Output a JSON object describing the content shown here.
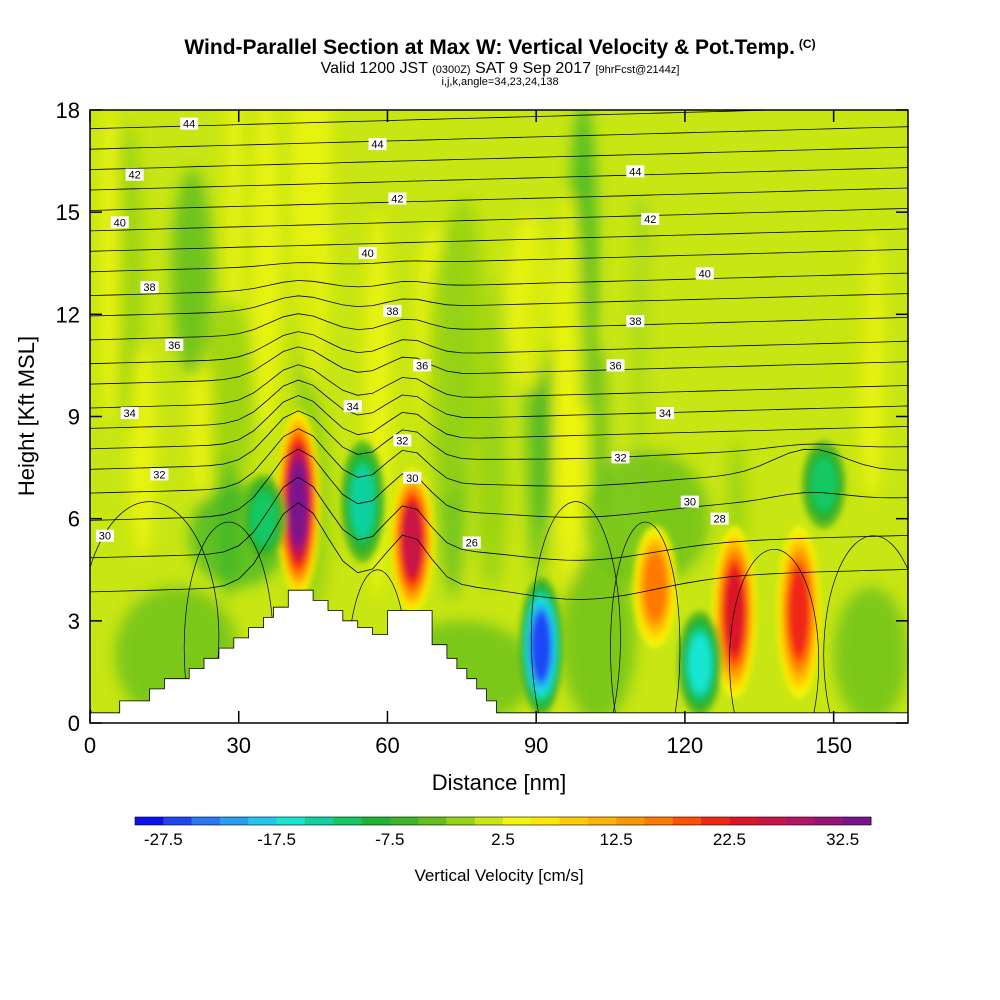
{
  "title": {
    "main": "Wind-Parallel Section at Max W: Vertical Velocity & Pot.Temp.",
    "copyright": "(C)",
    "valid_prefix": "Valid 1200 JST",
    "valid_utc": "(0300Z)",
    "valid_date": "SAT 9 Sep 2017",
    "forecast": "[9hrFcst@2144z]",
    "indices": "i,j,k,angle=34,23,24,138"
  },
  "chart_data": {
    "type": "heatmap",
    "xlabel": "Distance [nm]",
    "ylabel": "Height [Kft MSL]",
    "xlim": [
      0,
      165
    ],
    "ylim": [
      0,
      18
    ],
    "x_ticks": [
      "0",
      "30",
      "60",
      "90",
      "120",
      "150"
    ],
    "x_tick_values": [
      0,
      30,
      60,
      90,
      120,
      150
    ],
    "y_ticks": [
      "0",
      "3",
      "6",
      "9",
      "12",
      "15",
      "18"
    ],
    "y_tick_values": [
      0,
      3,
      6,
      9,
      12,
      15,
      18
    ],
    "colorbar": {
      "label": "Vertical Velocity [cm/s]",
      "min": -30,
      "max": 35,
      "step": 2.5,
      "tick_labels": [
        "-27.5",
        "-17.5",
        "-7.5",
        "2.5",
        "12.5",
        "22.5",
        "32.5"
      ],
      "tick_values": [
        -27.5,
        -17.5,
        -7.5,
        2.5,
        12.5,
        22.5,
        32.5
      ],
      "colors": [
        "#0a10f0",
        "#1e46f5",
        "#2878f5",
        "#28a0f0",
        "#1ec8f0",
        "#14e6d2",
        "#10d2a0",
        "#14c864",
        "#1eb432",
        "#3cb428",
        "#64be1e",
        "#96d214",
        "#c8e614",
        "#f0f50a",
        "#ffe600",
        "#ffcd00",
        "#ffb400",
        "#ff9600",
        "#ff7800",
        "#ff5000",
        "#f02814",
        "#dc1428",
        "#c81446",
        "#b41464",
        "#961478",
        "#78148c"
      ]
    },
    "velocity_cores": [
      {
        "x": 42,
        "y_range": [
          4,
          8.9
        ],
        "peak": 33,
        "sign": "up"
      },
      {
        "x": 65,
        "y_range": [
          3.5,
          7.2
        ],
        "peak": 25,
        "sign": "up"
      },
      {
        "x": 114,
        "y_range": [
          2.5,
          5.5
        ],
        "peak": 15,
        "sign": "up"
      },
      {
        "x": 130,
        "y_range": [
          1,
          5.5
        ],
        "peak": 23,
        "sign": "up"
      },
      {
        "x": 143,
        "y_range": [
          1,
          5.5
        ],
        "peak": 20,
        "sign": "up"
      },
      {
        "x": 91,
        "y_range": [
          0.5,
          4
        ],
        "peak": -26,
        "sign": "down"
      },
      {
        "x": 123,
        "y_range": [
          0.5,
          3
        ],
        "peak": -15,
        "sign": "down"
      },
      {
        "x": 55,
        "y_range": [
          5,
          8
        ],
        "peak": -13,
        "sign": "down"
      },
      {
        "x": 35,
        "y_range": [
          5,
          7
        ],
        "peak": -12,
        "sign": "down"
      },
      {
        "x": 148,
        "y_range": [
          6,
          8
        ],
        "peak": -12,
        "sign": "down"
      }
    ],
    "terrain": [
      [
        0,
        0.3
      ],
      [
        6,
        0.3
      ],
      [
        6,
        0.65
      ],
      [
        12,
        0.65
      ],
      [
        12,
        1.0
      ],
      [
        15,
        1.0
      ],
      [
        15,
        1.3
      ],
      [
        20,
        1.3
      ],
      [
        20,
        1.6
      ],
      [
        23,
        1.6
      ],
      [
        23,
        1.9
      ],
      [
        26,
        1.9
      ],
      [
        26,
        2.2
      ],
      [
        29,
        2.2
      ],
      [
        29,
        2.5
      ],
      [
        32,
        2.5
      ],
      [
        32,
        2.8
      ],
      [
        35,
        2.8
      ],
      [
        35,
        3.1
      ],
      [
        37,
        3.1
      ],
      [
        37,
        3.4
      ],
      [
        40,
        3.4
      ],
      [
        40,
        3.9
      ],
      [
        45,
        3.9
      ],
      [
        45,
        3.6
      ],
      [
        48,
        3.6
      ],
      [
        48,
        3.3
      ],
      [
        51,
        3.3
      ],
      [
        51,
        3.0
      ],
      [
        54,
        3.0
      ],
      [
        54,
        2.8
      ],
      [
        57,
        2.8
      ],
      [
        57,
        2.6
      ],
      [
        60,
        2.6
      ],
      [
        60,
        3.3
      ],
      [
        69,
        3.3
      ],
      [
        69,
        2.3
      ],
      [
        72,
        2.3
      ],
      [
        72,
        1.9
      ],
      [
        74,
        1.9
      ],
      [
        74,
        1.6
      ],
      [
        76,
        1.6
      ],
      [
        76,
        1.3
      ],
      [
        78,
        1.3
      ],
      [
        78,
        1.0
      ],
      [
        80,
        1.0
      ],
      [
        80,
        0.65
      ],
      [
        82,
        0.65
      ],
      [
        82,
        0.3
      ],
      [
        165,
        0.3
      ]
    ],
    "theta_contour_labels": [
      {
        "text": "44",
        "x": 20,
        "y": 17.6
      },
      {
        "text": "44",
        "x": 58,
        "y": 17.0
      },
      {
        "text": "44",
        "x": 110,
        "y": 16.2
      },
      {
        "text": "42",
        "x": 9,
        "y": 16.1
      },
      {
        "text": "42",
        "x": 62,
        "y": 15.4
      },
      {
        "text": "42",
        "x": 113,
        "y": 14.8
      },
      {
        "text": "40",
        "x": 6,
        "y": 14.7
      },
      {
        "text": "40",
        "x": 56,
        "y": 13.8
      },
      {
        "text": "40",
        "x": 124,
        "y": 13.2
      },
      {
        "text": "38",
        "x": 12,
        "y": 12.8
      },
      {
        "text": "38",
        "x": 61,
        "y": 12.1
      },
      {
        "text": "38",
        "x": 110,
        "y": 11.8
      },
      {
        "text": "36",
        "x": 17,
        "y": 11.1
      },
      {
        "text": "36",
        "x": 67,
        "y": 10.5
      },
      {
        "text": "36",
        "x": 106,
        "y": 10.5
      },
      {
        "text": "34",
        "x": 8,
        "y": 9.1
      },
      {
        "text": "34",
        "x": 53,
        "y": 9.3
      },
      {
        "text": "34",
        "x": 116,
        "y": 9.1
      },
      {
        "text": "32",
        "x": 63,
        "y": 8.3
      },
      {
        "text": "32",
        "x": 107,
        "y": 7.8
      },
      {
        "text": "32",
        "x": 14,
        "y": 7.3
      },
      {
        "text": "30",
        "x": 65,
        "y": 7.2
      },
      {
        "text": "30",
        "x": 3,
        "y": 5.5
      },
      {
        "text": "30",
        "x": 121,
        "y": 6.5
      },
      {
        "text": "28",
        "x": 127,
        "y": 6.0
      },
      {
        "text": "26",
        "x": 77,
        "y": 5.3
      }
    ]
  }
}
